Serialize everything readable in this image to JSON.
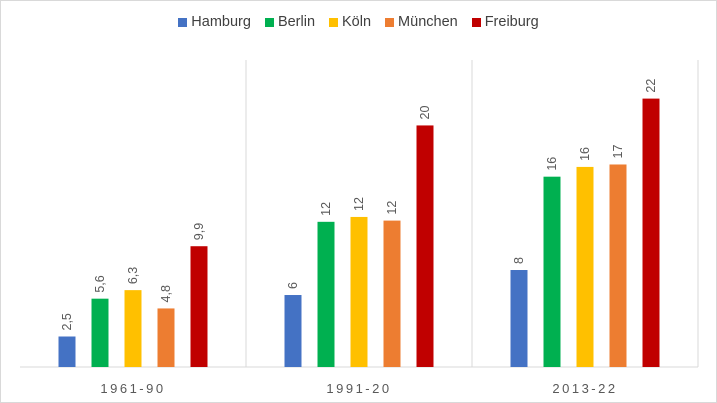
{
  "chart_data": {
    "type": "bar",
    "categories": [
      "1961-90",
      "1991-20",
      "2013-22"
    ],
    "series": [
      {
        "name": "Hamburg",
        "color": "#4472c4",
        "values": [
          2.5,
          5.9,
          7.95
        ],
        "labels": [
          "2,5",
          "6",
          "8"
        ]
      },
      {
        "name": "Berlin",
        "color": "#00b050",
        "values": [
          5.6,
          11.9,
          15.6
        ],
        "labels": [
          "5,6",
          "12",
          "16"
        ]
      },
      {
        "name": "Köln",
        "color": "#ffc000",
        "values": [
          6.3,
          12.3,
          16.4
        ],
        "labels": [
          "6,3",
          "12",
          "16"
        ]
      },
      {
        "name": "München",
        "color": "#ed7d31",
        "values": [
          4.8,
          12.0,
          16.6
        ],
        "labels": [
          "4,8",
          "12",
          "17"
        ]
      },
      {
        "name": "Freiburg",
        "color": "#c00000",
        "values": [
          9.9,
          19.8,
          22
        ],
        "labels": [
          "9,9",
          "20",
          "22"
        ]
      }
    ],
    "title": "",
    "xlabel": "",
    "ylabel": "",
    "ylim": [
      0,
      25
    ],
    "grid": false,
    "legend": "top",
    "data_labels": "rotated"
  }
}
